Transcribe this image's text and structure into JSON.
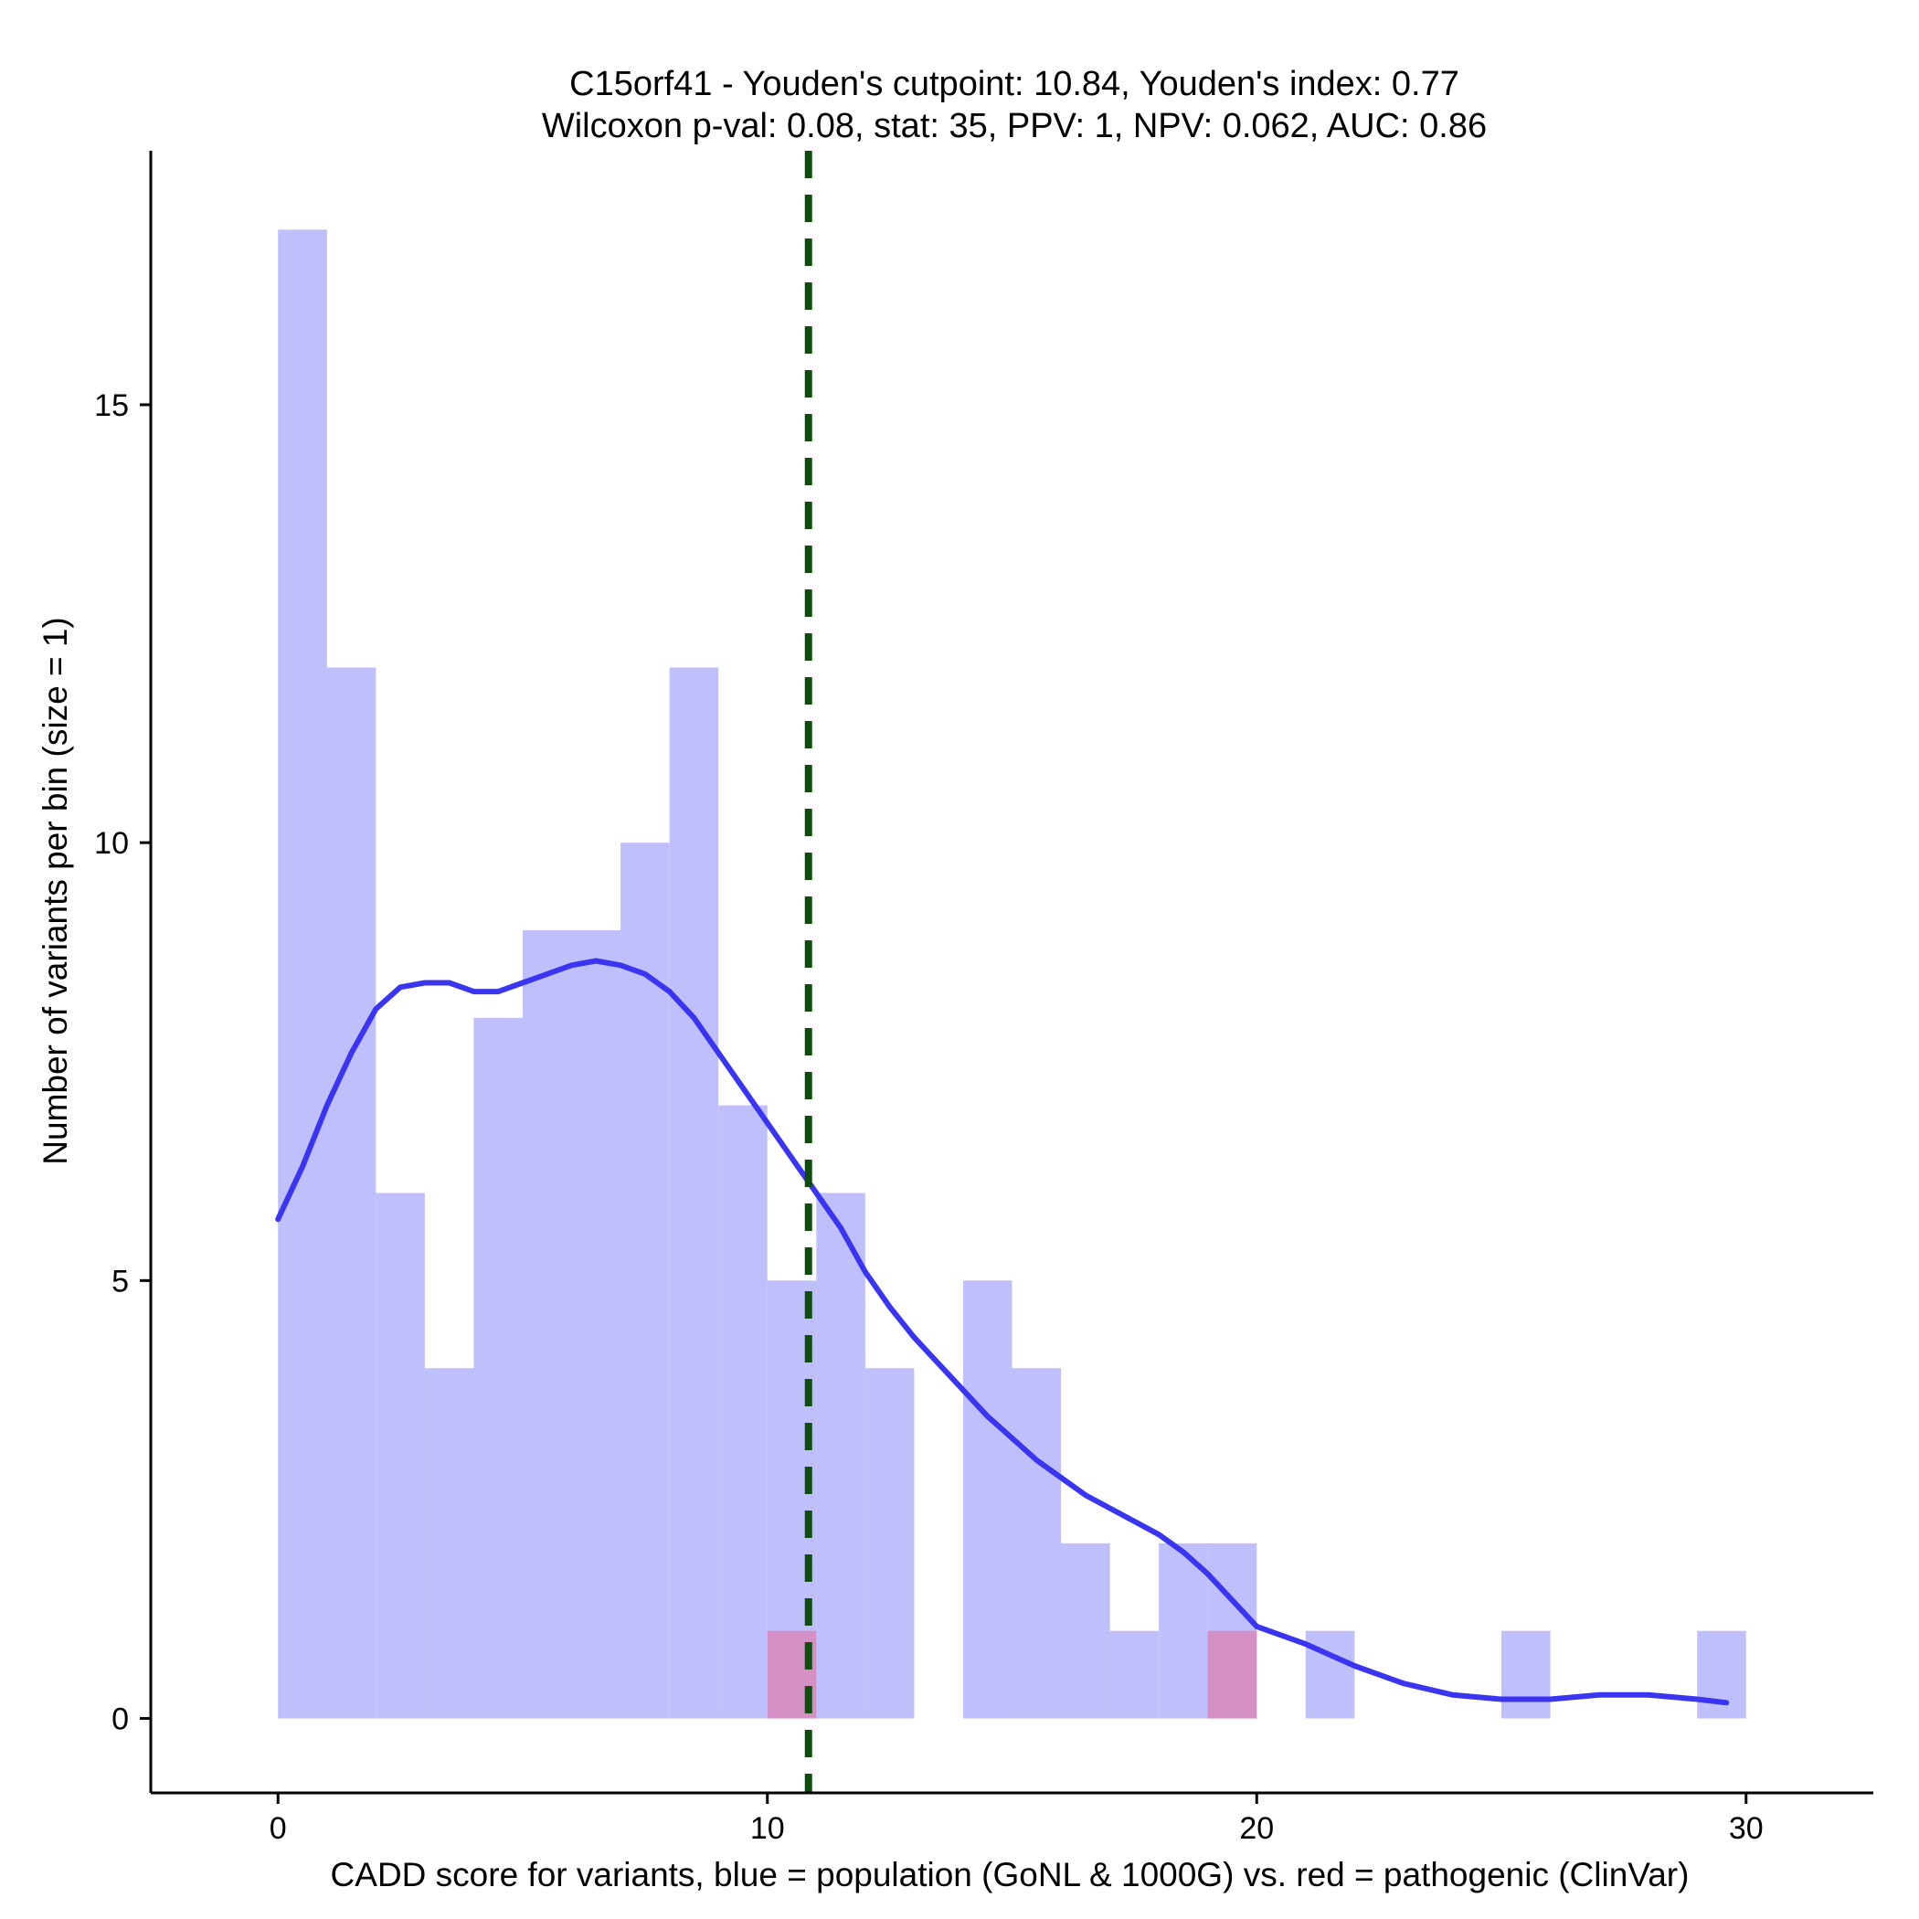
{
  "chart_data": {
    "type": "bar",
    "title_line1": "C15orf41 - Youden's cutpoint: 10.84, Youden's index: 0.77",
    "title_line2": "Wilcoxon p-val: 0.08, stat: 35, PPV: 1, NPV: 0.062, AUC: 0.86",
    "xlabel": "CADD score for variants, blue = population (GoNL & 1000G) vs. red = pathogenic (ClinVar)",
    "ylabel": "Number of variants per bin (size = 1)",
    "xlim": [
      -2.6,
      32.6
    ],
    "ylim": [
      -0.85,
      17.9
    ],
    "x_ticks": [
      0,
      10,
      20,
      30
    ],
    "x_tick_labels": [
      "0",
      "10",
      "20",
      "30"
    ],
    "y_ticks": [
      0,
      5,
      10,
      15
    ],
    "y_tick_labels": [
      "0",
      "5",
      "10",
      "15"
    ],
    "bin_width": 1,
    "series": [
      {
        "name": "population (GoNL & 1000G)",
        "color": "#bfbffc",
        "bin_starts": [
          0,
          1,
          2,
          3,
          4,
          5,
          6,
          7,
          8,
          9,
          10,
          11,
          12,
          14,
          15,
          16,
          17,
          18,
          19,
          21,
          25,
          29
        ],
        "values": [
          17,
          12,
          6,
          4,
          8,
          9,
          9,
          10,
          12,
          7,
          5,
          6,
          4,
          5,
          4,
          2,
          1,
          2,
          2,
          1,
          1,
          1
        ]
      },
      {
        "name": "pathogenic (ClinVar)",
        "color": "#d490c4",
        "bin_starts": [
          10,
          19
        ],
        "values": [
          1,
          1
        ]
      }
    ],
    "density_curve": {
      "color": "#3a35f0",
      "x": [
        0,
        0.5,
        1,
        1.5,
        2,
        2.5,
        3,
        3.5,
        4,
        4.5,
        5,
        5.5,
        6,
        6.5,
        7,
        7.5,
        8,
        8.5,
        9,
        9.5,
        10,
        10.5,
        11,
        11.5,
        12,
        12.5,
        13,
        13.5,
        14,
        14.5,
        15,
        15.5,
        16,
        16.5,
        17,
        17.5,
        18,
        18.5,
        19,
        19.5,
        20,
        21,
        22,
        23,
        24,
        25,
        26,
        27,
        28,
        29,
        29.6
      ],
      "y": [
        5.7,
        6.3,
        7.0,
        7.6,
        8.1,
        8.35,
        8.4,
        8.4,
        8.3,
        8.3,
        8.4,
        8.5,
        8.6,
        8.65,
        8.6,
        8.5,
        8.3,
        8.0,
        7.6,
        7.2,
        6.8,
        6.4,
        6.0,
        5.6,
        5.1,
        4.7,
        4.35,
        4.05,
        3.75,
        3.45,
        3.2,
        2.95,
        2.75,
        2.55,
        2.4,
        2.25,
        2.1,
        1.9,
        1.65,
        1.35,
        1.05,
        0.85,
        0.6,
        0.4,
        0.27,
        0.22,
        0.22,
        0.27,
        0.27,
        0.22,
        0.18
      ]
    },
    "cutpoint": {
      "x": 10.84,
      "color": "#0e4d0e",
      "style": "dashed"
    }
  }
}
